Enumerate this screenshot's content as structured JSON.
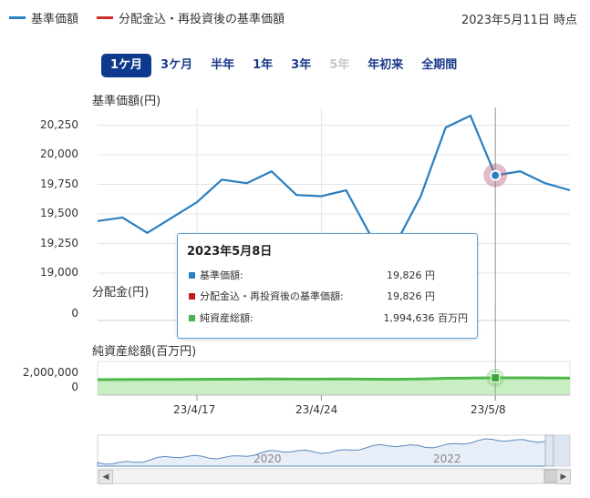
{
  "legend": {
    "nav_label": "基準価額",
    "reinvest_label": "分配金込・再投資後の基準価額",
    "nav_color": "#2a7fc0",
    "reinvest_color": "#d22b2b"
  },
  "as_of": "2023年5月11日 時点",
  "range_buttons": [
    {
      "label": "1ケ月",
      "state": "active"
    },
    {
      "label": "3ケ月",
      "state": "normal"
    },
    {
      "label": "半年",
      "state": "normal"
    },
    {
      "label": "1年",
      "state": "normal"
    },
    {
      "label": "3年",
      "state": "normal"
    },
    {
      "label": "5年",
      "state": "disabled"
    },
    {
      "label": "年初来",
      "state": "normal"
    },
    {
      "label": "全期間",
      "state": "normal"
    }
  ],
  "panels": {
    "nav_title": "基準価額(円)",
    "dist_title": "分配金(円)",
    "assets_title": "純資産総額(百万円)",
    "dist_tick": "0",
    "assets_ticks": [
      "2,000,000",
      "0"
    ]
  },
  "tooltip": {
    "date": "2023年5月8日",
    "rows": [
      {
        "label": "基準価額:",
        "value": "19,826 円",
        "color": "#2a7fc0"
      },
      {
        "label": "分配金込・再投資後の基準価額:",
        "value": "19,826 円",
        "color": "#c21b1b"
      },
      {
        "label": "純資産総額:",
        "value": "1,994,636 百万円",
        "color": "#4caf50"
      }
    ]
  },
  "x_labels": [
    "23/4/17",
    "23/4/24",
    "23/5/8"
  ],
  "navigator": {
    "year_labels": [
      "2020",
      "2022"
    ]
  },
  "chart_data": {
    "type": "line",
    "ylabel": "基準価額(円)",
    "ylim": [
      19000,
      20400
    ],
    "yticks": [
      19000,
      19250,
      19500,
      19750,
      20000,
      20250
    ],
    "ytick_labels": [
      "19,000",
      "19,250",
      "19,500",
      "19,750",
      "20,000",
      "20,250"
    ],
    "x": [
      "2023-04-11",
      "2023-04-12",
      "2023-04-13",
      "2023-04-14",
      "2023-04-17",
      "2023-04-18",
      "2023-04-19",
      "2023-04-20",
      "2023-04-21",
      "2023-04-24",
      "2023-04-25",
      "2023-04-26",
      "2023-04-27",
      "2023-04-28",
      "2023-05-01",
      "2023-05-02",
      "2023-05-08",
      "2023-05-09",
      "2023-05-10",
      "2023-05-11"
    ],
    "series": [
      {
        "values": [
          19440,
          19470,
          19340,
          19470,
          19600,
          19790,
          19760,
          19860,
          19660,
          19650,
          19700,
          19310,
          19250,
          19650,
          20230,
          20330,
          19826,
          19860,
          19760,
          19700
        ],
        "color": "#2a7fc0"
      }
    ],
    "assets_values": [
      1975000,
      1976000,
      1977000,
      1978000,
      1979000,
      1980000,
      1981000,
      1982000,
      1981000,
      1981000,
      1982000,
      1980000,
      1979000,
      1983000,
      1990000,
      1992000,
      1994636,
      1995000,
      1994000,
      1993000
    ],
    "highlight_date": "2023-05-08"
  }
}
